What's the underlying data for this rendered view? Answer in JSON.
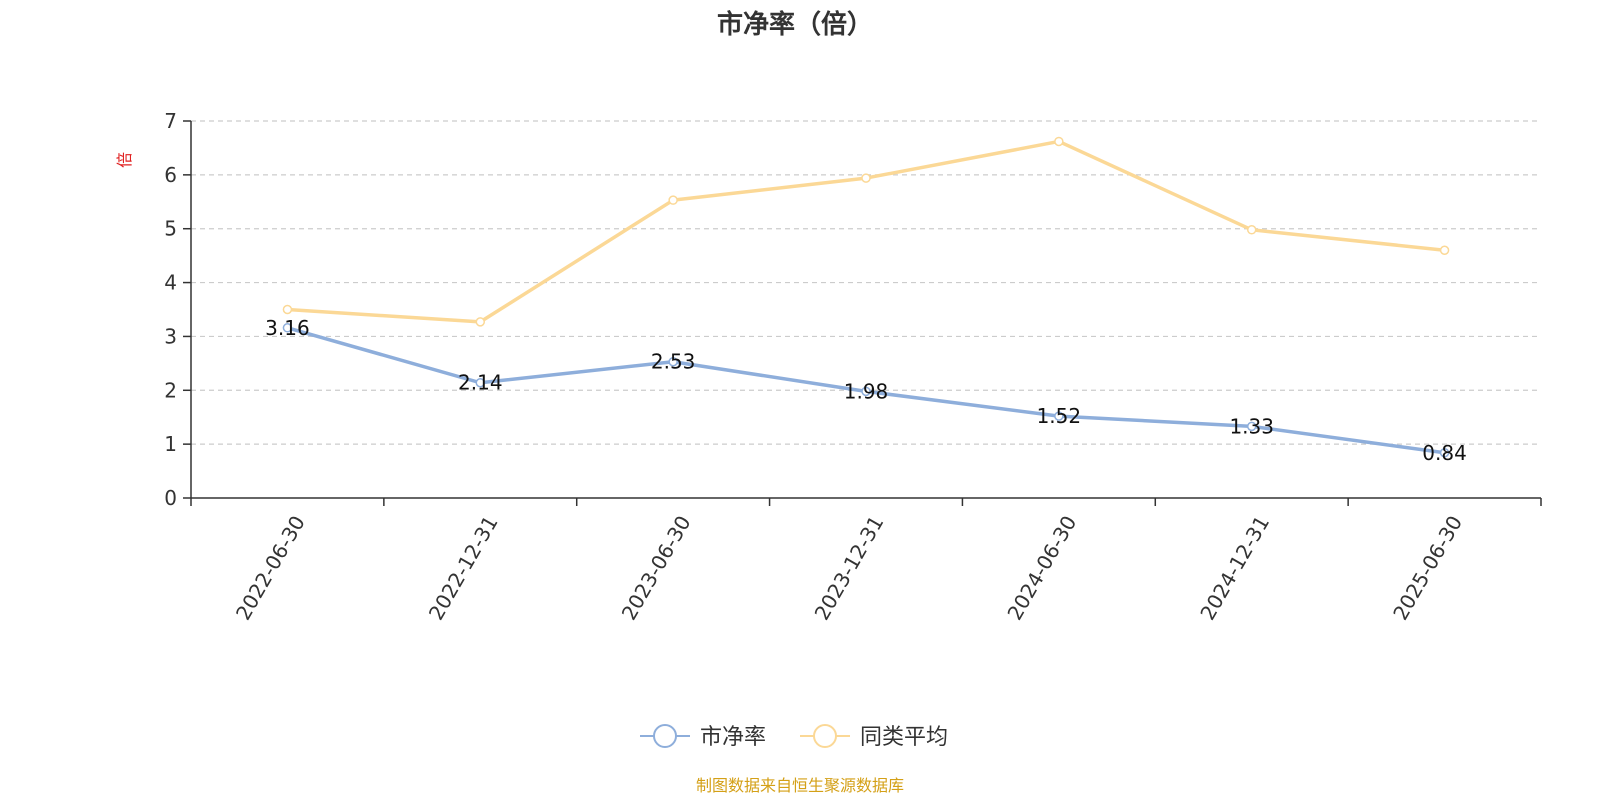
{
  "chart_data": {
    "type": "line",
    "title": "市净率（倍）",
    "ylabel": "倍",
    "ylim": [
      0,
      7
    ],
    "yticks": [
      0,
      1,
      2,
      3,
      4,
      5,
      6,
      7
    ],
    "categories": [
      "2022-06-30",
      "2022-12-31",
      "2023-06-30",
      "2023-12-31",
      "2024-06-30",
      "2024-12-31",
      "2025-06-30"
    ],
    "series": [
      {
        "name": "市净率",
        "color": "#8eaedb",
        "values": [
          3.16,
          2.14,
          2.53,
          1.98,
          1.52,
          1.33,
          0.84
        ],
        "show_labels": true
      },
      {
        "name": "同类平均",
        "color": "#fbd896",
        "values": [
          3.5,
          3.27,
          5.53,
          5.94,
          6.62,
          4.98,
          4.6
        ],
        "show_labels": false
      }
    ],
    "grid": true,
    "grid_style": "dashed",
    "legend_position": "bottom-center"
  },
  "source_note": "制图数据来自恒生聚源数据库",
  "colors": {
    "ylabel": "#e02020",
    "source": "#d4a017",
    "axis": "#333333",
    "grid": "#cccccc"
  }
}
